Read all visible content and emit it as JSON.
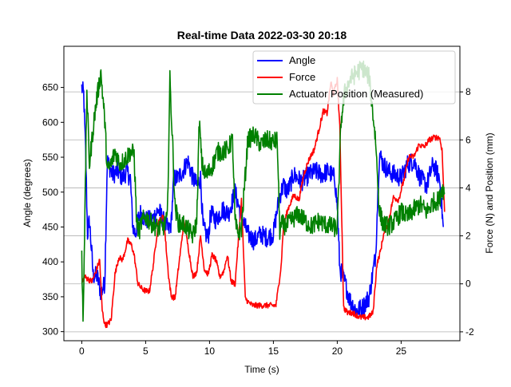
{
  "chart_data": {
    "type": "line",
    "title": "Real-time Data 2022-03-30 20:18",
    "xlabel": "Time (s)",
    "ylabel_left": "Angle (degrees)",
    "ylabel_right": "Force (N) and Position (mm)",
    "xlim": [
      -1.4,
      29.6
    ],
    "ylim_left": [
      287,
      709
    ],
    "ylim_right": [
      -2.37,
      9.9
    ],
    "x_ticks": [
      0,
      5,
      10,
      15,
      20,
      25
    ],
    "y_ticks_left": [
      300,
      350,
      400,
      450,
      500,
      550,
      600,
      650
    ],
    "y_ticks_right": [
      -2,
      0,
      2,
      4,
      6,
      8
    ],
    "grid": "right-axis horizontal lines",
    "legend_position": "top-right",
    "legend": [
      "Angle",
      "Force",
      "Actuator Position (Measured)"
    ],
    "noise": {
      "Angle": 14,
      "Force": 0.12,
      "Actuator Position (Measured)": 0.4
    },
    "series": [
      {
        "name": "Angle",
        "axis": "left",
        "color": "#0000ff",
        "x": [
          0,
          0.15,
          0.3,
          0.45,
          0.6,
          0.9,
          1.2,
          1.5,
          1.8,
          2.0,
          2.2,
          2.4,
          2.8,
          3.2,
          3.5,
          3.8,
          4.0,
          4.2,
          4.4,
          4.6,
          5.0,
          5.5,
          6.0,
          6.5,
          6.8,
          7.0,
          7.2,
          7.5,
          7.9,
          8.3,
          8.7,
          9.0,
          9.3,
          9.5,
          9.7,
          9.9,
          10.1,
          10.5,
          11.0,
          11.5,
          12.0,
          12.5,
          13.0,
          13.5,
          14.0,
          14.5,
          15.0,
          15.3,
          15.5,
          15.8,
          16.1,
          16.6,
          17.2,
          17.8,
          18.3,
          18.8,
          19.3,
          19.8,
          20.0,
          20.2,
          20.6,
          21.0,
          21.5,
          22.0,
          22.5,
          23.0,
          23.3,
          23.6,
          24.0,
          24.5,
          25.0,
          25.5,
          26.0,
          26.5,
          27.0,
          27.5,
          28.0,
          28.3
        ],
        "y": [
          650,
          640,
          560,
          440,
          460,
          380,
          380,
          355,
          370,
          545,
          535,
          525,
          530,
          520,
          530,
          520,
          450,
          440,
          460,
          470,
          460,
          460,
          475,
          455,
          445,
          455,
          520,
          520,
          530,
          545,
          520,
          510,
          520,
          450,
          440,
          435,
          470,
          460,
          475,
          470,
          500,
          465,
          440,
          430,
          440,
          435,
          440,
          475,
          495,
          510,
          500,
          525,
          515,
          525,
          530,
          525,
          530,
          520,
          480,
          390,
          370,
          345,
          330,
          335,
          350,
          410,
          555,
          540,
          530,
          525,
          520,
          540,
          545,
          520,
          510,
          540,
          520,
          450
        ]
      },
      {
        "name": "Force",
        "axis": "right",
        "color": "#ff0000",
        "x": [
          0,
          0.2,
          0.5,
          0.8,
          1.1,
          1.4,
          1.6,
          1.8,
          2.0,
          2.3,
          2.6,
          2.9,
          3.2,
          3.6,
          3.9,
          4.1,
          4.4,
          4.7,
          5.0,
          5.3,
          5.6,
          6.0,
          6.4,
          6.8,
          7.0,
          7.3,
          7.6,
          8.0,
          8.4,
          8.7,
          9.0,
          9.3,
          9.6,
          9.9,
          10.2,
          10.5,
          10.8,
          11.1,
          11.4,
          11.7,
          12.0,
          12.2,
          12.5,
          12.8,
          13.1,
          13.4,
          14.0,
          14.6,
          15.2,
          15.6,
          15.8,
          16.2,
          16.6,
          17.0,
          17.4,
          17.8,
          18.2,
          18.6,
          18.9,
          19.2,
          19.5,
          19.7,
          20.0,
          20.2,
          20.5,
          20.8,
          21.2,
          21.8,
          22.4,
          22.8,
          23.1,
          23.4,
          23.6,
          24.0,
          24.4,
          24.8,
          25.2,
          25.6,
          26.0,
          26.4,
          26.8,
          27.2,
          27.6,
          28.0,
          28.2,
          28.4
        ],
        "y": [
          0,
          0.3,
          0.2,
          0.1,
          0.5,
          1.0,
          -1.1,
          -1.7,
          -1.7,
          -1.5,
          0.4,
          1.1,
          1.0,
          1.8,
          1.6,
          1.2,
          0,
          -0.2,
          -0.3,
          -0.3,
          0.8,
          2.6,
          2.8,
          0.3,
          -0.5,
          -0.6,
          0.8,
          2.6,
          1.3,
          0.3,
          0.5,
          2.0,
          0.6,
          0.4,
          1.2,
          1.0,
          0.3,
          0.5,
          1.2,
          0.1,
          0,
          1.4,
          3.5,
          -0.6,
          -0.8,
          -0.9,
          -0.9,
          -0.9,
          -0.9,
          0.7,
          2.5,
          3.2,
          3.7,
          3.5,
          4.6,
          5.2,
          5.6,
          6.5,
          7.2,
          7.1,
          8.4,
          7.9,
          8.5,
          6.5,
          -1.0,
          -1.2,
          -1.2,
          -1.4,
          -1.4,
          -1.2,
          0.8,
          1.4,
          2.0,
          2.6,
          3.6,
          3.5,
          4.3,
          5.3,
          5.3,
          5.8,
          5.7,
          6.0,
          6.1,
          6.1,
          5.6,
          3.0
        ]
      },
      {
        "name": "Actuator Position (Measured)",
        "axis": "right",
        "color": "#008000",
        "x": [
          0,
          0.1,
          0.25,
          0.4,
          0.6,
          0.8,
          1.0,
          1.2,
          1.5,
          1.8,
          2.0,
          2.3,
          2.6,
          3.0,
          3.4,
          3.8,
          4.1,
          4.3,
          4.5,
          4.7,
          5.0,
          5.5,
          6.0,
          6.4,
          6.7,
          6.9,
          7.1,
          7.3,
          7.6,
          8.0,
          8.4,
          8.7,
          9.0,
          9.2,
          9.4,
          9.7,
          10.0,
          10.3,
          10.6,
          11.0,
          11.4,
          11.8,
          12.0,
          12.2,
          12.5,
          13.0,
          13.5,
          14.0,
          14.5,
          15.0,
          15.3,
          15.5,
          15.7,
          16.0,
          16.5,
          17.0,
          17.5,
          18.0,
          18.5,
          19.0,
          19.5,
          20.0,
          20.3,
          20.6,
          21.0,
          21.5,
          22.0,
          22.5,
          23.0,
          23.3,
          23.6,
          24.0,
          24.5,
          25.0,
          25.5,
          26.0,
          26.5,
          27.0,
          27.5,
          28.0,
          28.2,
          28.4
        ],
        "y": [
          1.2,
          -1.5,
          3.0,
          8.0,
          5.0,
          6.0,
          7.0,
          7.8,
          8.8,
          6.8,
          4.7,
          5.0,
          5.5,
          5.0,
          5.2,
          5.5,
          5.4,
          2.5,
          2.2,
          2.6,
          2.8,
          2.5,
          2.3,
          2.4,
          2.7,
          8.5,
          6.0,
          3.2,
          2.5,
          2.5,
          2.2,
          2.0,
          2.6,
          6.8,
          5.0,
          4.5,
          4.7,
          5.0,
          5.5,
          5.5,
          5.6,
          6.0,
          2.6,
          2.1,
          2.3,
          6.0,
          6.2,
          5.8,
          6.0,
          5.9,
          6.0,
          2.2,
          2.5,
          2.4,
          2.7,
          2.9,
          2.6,
          2.4,
          2.6,
          2.5,
          2.4,
          2.3,
          6.8,
          8.0,
          8.5,
          8.8,
          9.0,
          8.6,
          6.0,
          3.0,
          2.5,
          2.4,
          2.6,
          3.0,
          2.8,
          3.1,
          3.3,
          3.0,
          3.4,
          3.5,
          4.0,
          3.8
        ]
      }
    ]
  }
}
